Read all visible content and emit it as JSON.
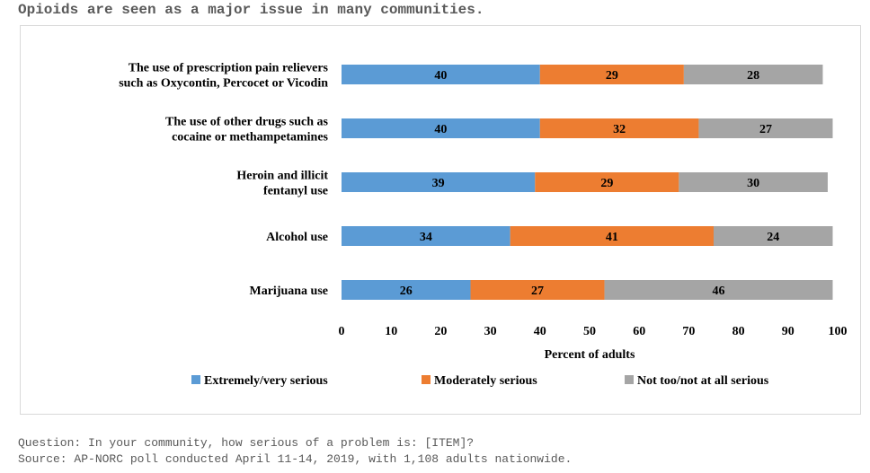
{
  "headline": "Opioids are seen as a major issue in many communities.",
  "footnotes": {
    "question": "Question: In your community, how serious of a problem is: [ITEM]?",
    "source": "Source: AP-NORC poll conducted April 11-14, 2019, with 1,108 adults nationwide."
  },
  "chart_data": {
    "type": "bar",
    "orientation": "horizontal",
    "stacked": true,
    "categories": [
      [
        "The use of prescription pain relievers",
        "such as Oxycontin, Percocet or Vicodin"
      ],
      [
        "The use of other drugs such as",
        "cocaine or methampetamines"
      ],
      [
        "Heroin and illicit",
        "fentanyl use"
      ],
      [
        "Alcohol use"
      ],
      [
        "Marijuana use"
      ]
    ],
    "series": [
      {
        "name": "Extremely/very serious",
        "color": "#5b9bd5",
        "values": [
          40,
          40,
          39,
          34,
          26
        ]
      },
      {
        "name": "Moderately serious",
        "color": "#ed7d31",
        "values": [
          29,
          32,
          29,
          41,
          27
        ]
      },
      {
        "name": "Not too/not at all serious",
        "color": "#a5a5a5",
        "values": [
          28,
          27,
          30,
          24,
          46
        ]
      }
    ],
    "xlabel": "Percent of adults",
    "xlim": [
      0,
      100
    ],
    "xticks": [
      0,
      10,
      20,
      30,
      40,
      50,
      60,
      70,
      80,
      90,
      100
    ],
    "grid": false,
    "legend_position": "bottom"
  }
}
